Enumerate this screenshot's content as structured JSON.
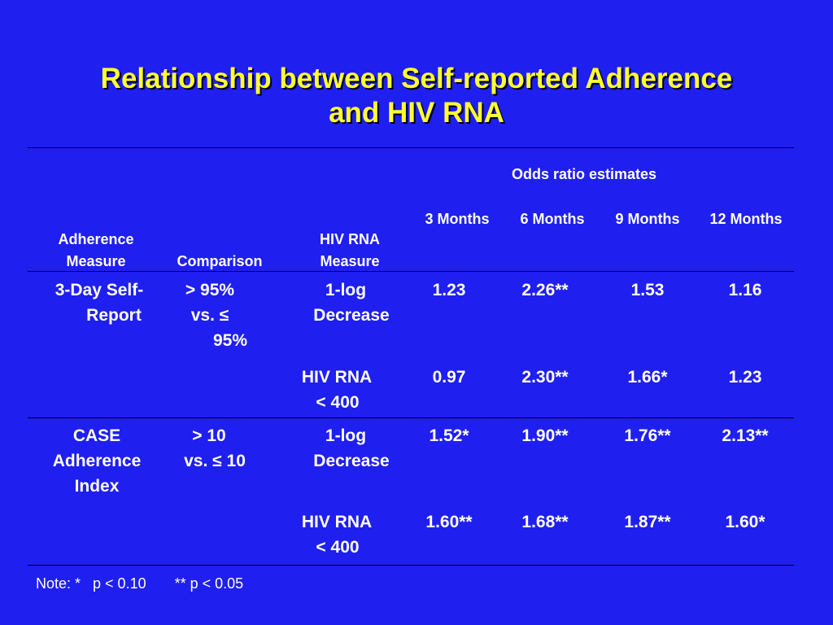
{
  "title": {
    "line1": "Relationship between Self-reported Adherence",
    "line2": "and HIV RNA"
  },
  "header": {
    "group_label": "Odds ratio estimates",
    "months": [
      "3 Months",
      "6 Months",
      "9 Months",
      "12 Months"
    ],
    "adherence_measure": [
      "Adherence",
      "Measure"
    ],
    "comparison": "Comparison",
    "hiv_rna_measure": [
      "HIV RNA",
      "Measure"
    ]
  },
  "rows": [
    {
      "adherence": [
        "3-Day Self-",
        "Report"
      ],
      "comparison": [
        "> 95%",
        "vs. ≤",
        "95%"
      ],
      "hiv": [
        "1-log",
        "Decrease"
      ],
      "values": [
        "1.23",
        "2.26**",
        "1.53",
        "1.16"
      ]
    },
    {
      "adherence": [],
      "comparison": [],
      "hiv": [
        "HIV RNA",
        "< 400"
      ],
      "values": [
        "0.97",
        "2.30**",
        "1.66*",
        "1.23"
      ]
    },
    {
      "adherence": [
        "CASE",
        "Adherence",
        "Index"
      ],
      "comparison": [
        "> 10",
        "vs. ≤ 10"
      ],
      "hiv": [
        "1-log",
        "Decrease"
      ],
      "values": [
        "1.52*",
        "1.90**",
        "1.76**",
        "2.13**"
      ]
    },
    {
      "adherence": [],
      "comparison": [],
      "hiv": [
        "HIV RNA",
        "< 400"
      ],
      "values": [
        "1.60**",
        "1.68**",
        "1.87**",
        "1.60*"
      ]
    }
  ],
  "note": "Note: *   p < 0.10       ** p < 0.05",
  "colors": {
    "background": "#1f1ff0",
    "title": "#ffff33",
    "text": "#ffffff",
    "rules": "#000000"
  }
}
